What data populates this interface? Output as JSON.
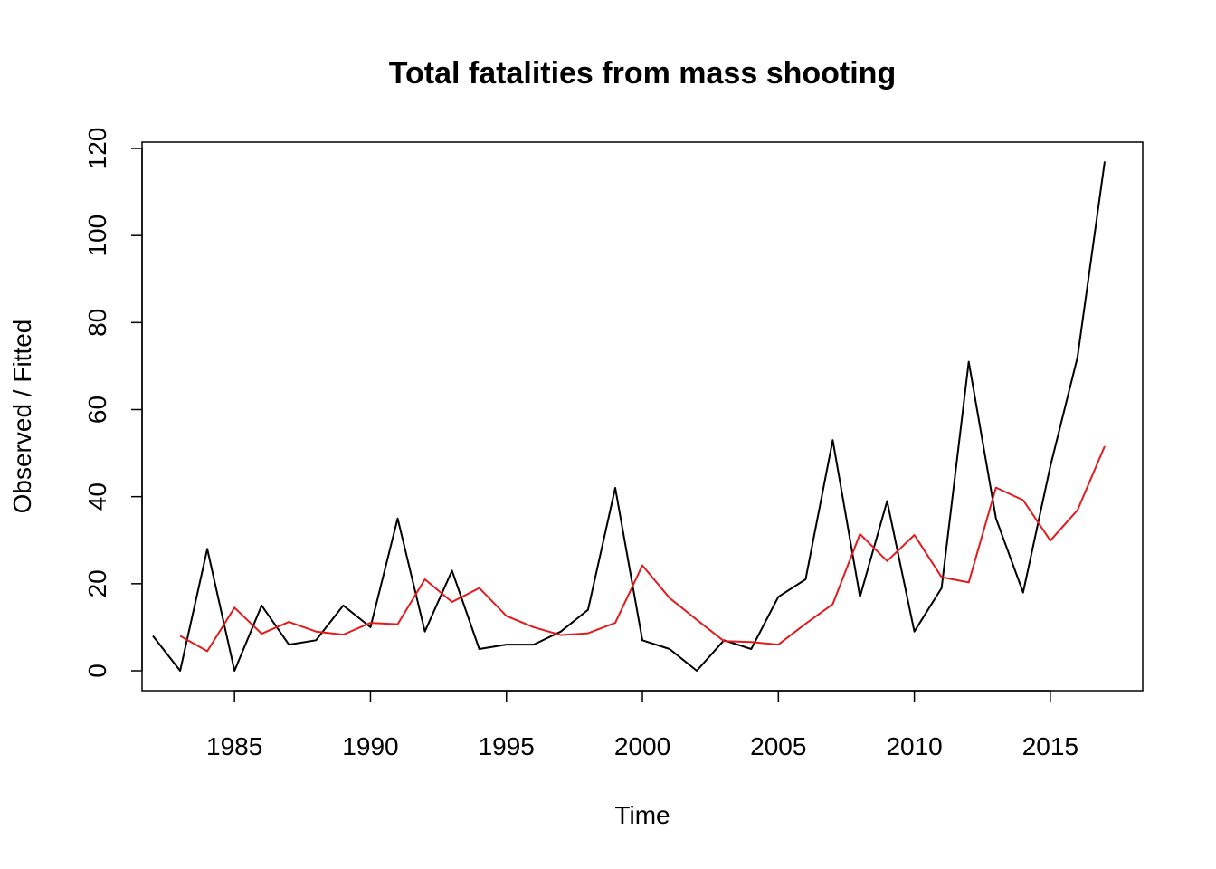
{
  "chart_data": {
    "type": "line",
    "title": "Total fatalities from mass shooting",
    "xlabel": "Time",
    "ylabel": "Observed / Fitted",
    "xlim": [
      1982,
      2017
    ],
    "ylim": [
      0,
      120
    ],
    "xticks": [
      1985,
      1990,
      1995,
      2000,
      2005,
      2010,
      2015
    ],
    "yticks": [
      0,
      20,
      40,
      60,
      80,
      100,
      120
    ],
    "grid": false,
    "legend": "none",
    "series": [
      {
        "color": "#000000",
        "x": [
          1982,
          1983,
          1984,
          1985,
          1986,
          1987,
          1988,
          1989,
          1990,
          1991,
          1992,
          1993,
          1994,
          1995,
          1996,
          1997,
          1998,
          1999,
          2000,
          2001,
          2002,
          2003,
          2004,
          2005,
          2006,
          2007,
          2008,
          2009,
          2010,
          2011,
          2012,
          2013,
          2014,
          2015,
          2016,
          2017
        ],
        "values": [
          8,
          0,
          28,
          0,
          15,
          6,
          7,
          15,
          10,
          35,
          9,
          23,
          5,
          6,
          6,
          9,
          14,
          42,
          7,
          5,
          0,
          7,
          5,
          17,
          21,
          53,
          17,
          39,
          9,
          19,
          71,
          35,
          18,
          47,
          72,
          117
        ]
      },
      {
        "color": "#e41a1c",
        "x": [
          1983,
          1984,
          1985,
          1986,
          1987,
          1988,
          1989,
          1990,
          1991,
          1992,
          1993,
          1994,
          1995,
          1996,
          1997,
          1998,
          1999,
          2000,
          2001,
          2002,
          2003,
          2004,
          2005,
          2006,
          2007,
          2008,
          2009,
          2010,
          2011,
          2012,
          2013,
          2014,
          2015,
          2016,
          2017
        ],
        "values": [
          8,
          4.5,
          14.5,
          8.5,
          11.2,
          9,
          8.3,
          11,
          10.7,
          21,
          15.8,
          19,
          12.6,
          10,
          8.2,
          8.6,
          11,
          24.2,
          16.7,
          11.7,
          6.8,
          6.6,
          6,
          10.8,
          15.3,
          31.4,
          25.2,
          31.2,
          21.5,
          20.3,
          42.1,
          39.2,
          29.9,
          36.9,
          51.6
        ]
      }
    ]
  }
}
